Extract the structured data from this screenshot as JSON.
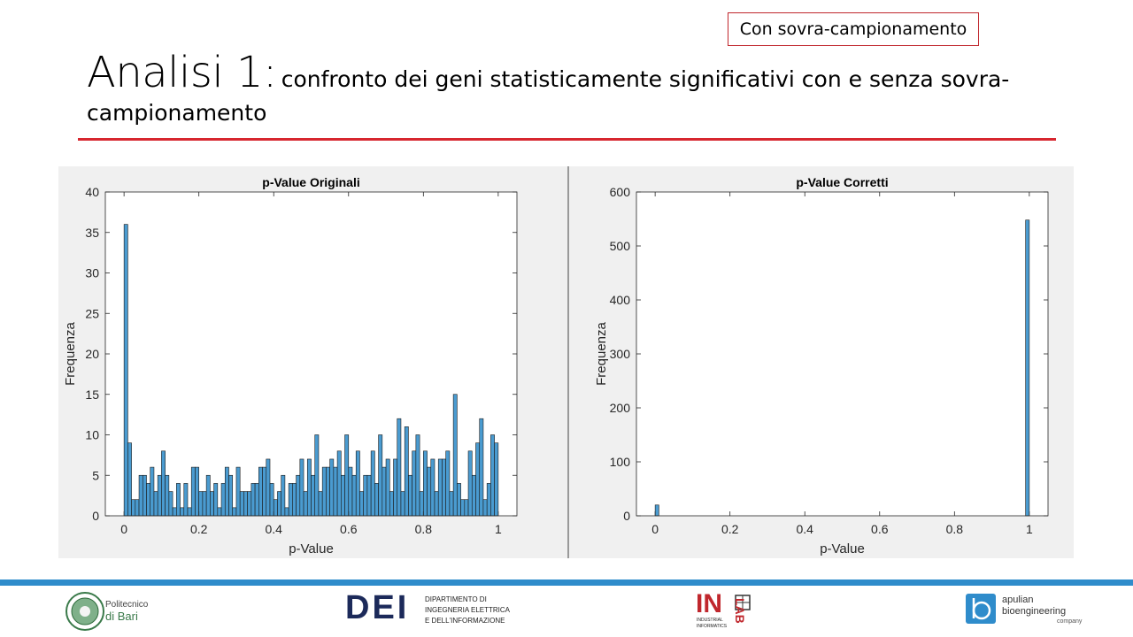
{
  "badge": "Con sovra-campionamento",
  "heading": {
    "main": "Analisi 1:",
    "rest": "confronto dei geni statisticamente significativi con e senza sovra-campionamento"
  },
  "chart_data": [
    {
      "type": "bar",
      "title": "p-Value Originali",
      "xlabel": "p-Value",
      "ylabel": "Frequenza",
      "xlim": [
        -0.05,
        1.05
      ],
      "ylim": [
        0,
        40
      ],
      "xticks": [
        0,
        0.2,
        0.4,
        0.6,
        0.8,
        1
      ],
      "xtick_labels": [
        "0",
        "0.2",
        "0.4",
        "0.6",
        "0.8",
        "1"
      ],
      "yticks": [
        0,
        5,
        10,
        15,
        20,
        25,
        30,
        35,
        40
      ],
      "ytick_labels": [
        "0",
        "5",
        "10",
        "15",
        "20",
        "25",
        "30",
        "35",
        "40"
      ],
      "bin_start": 0,
      "bin_width": 0.01,
      "values": [
        36,
        9,
        2,
        2,
        5,
        5,
        4,
        6,
        3,
        5,
        8,
        5,
        3,
        1,
        4,
        1,
        4,
        1,
        6,
        6,
        3,
        3,
        5,
        3,
        4,
        1,
        4,
        6,
        5,
        1,
        6,
        3,
        3,
        3,
        4,
        4,
        6,
        6,
        7,
        4,
        2,
        3,
        5,
        1,
        4,
        4,
        5,
        7,
        3,
        7,
        5,
        10,
        3,
        6,
        6,
        7,
        6,
        8,
        5,
        10,
        6,
        5,
        8,
        3,
        5,
        5,
        8,
        4,
        10,
        6,
        7,
        3,
        7,
        12,
        3,
        11,
        5,
        8,
        10,
        3,
        8,
        6,
        7,
        3,
        7,
        7,
        8,
        3,
        15,
        4,
        2,
        2,
        8,
        5,
        9,
        12,
        2,
        4,
        10,
        9
      ],
      "bar_color": "#4a9bd0"
    },
    {
      "type": "bar",
      "title": "p-Value Corretti",
      "xlabel": "p-Value",
      "ylabel": "Frequenza",
      "xlim": [
        -0.05,
        1.05
      ],
      "ylim": [
        0,
        600
      ],
      "xticks": [
        0,
        0.2,
        0.4,
        0.6,
        0.8,
        1
      ],
      "xtick_labels": [
        "0",
        "0.2",
        "0.4",
        "0.6",
        "0.8",
        "1"
      ],
      "yticks": [
        0,
        100,
        200,
        300,
        400,
        500,
        600
      ],
      "ytick_labels": [
        "0",
        "100",
        "200",
        "300",
        "400",
        "500",
        "600"
      ],
      "bin_start": 0,
      "bin_width": 0.01,
      "values": [
        20,
        0,
        0,
        0,
        0,
        0,
        0,
        0,
        0,
        0,
        0,
        0,
        0,
        0,
        0,
        0,
        0,
        0,
        0,
        0,
        0,
        0,
        0,
        0,
        0,
        0,
        0,
        0,
        0,
        0,
        0,
        0,
        0,
        0,
        0,
        0,
        0,
        0,
        0,
        0,
        0,
        0,
        0,
        0,
        0,
        0,
        0,
        0,
        0,
        0,
        0,
        0,
        0,
        0,
        0,
        0,
        0,
        0,
        0,
        0,
        0,
        0,
        0,
        0,
        0,
        0,
        0,
        0,
        0,
        0,
        0,
        0,
        0,
        0,
        0,
        0,
        0,
        0,
        0,
        0,
        0,
        0,
        0,
        0,
        0,
        0,
        0,
        0,
        0,
        0,
        0,
        0,
        0,
        0,
        0,
        0,
        0,
        0,
        0,
        548
      ],
      "bar_color": "#4a9bd0"
    }
  ],
  "logos": {
    "poliba": [
      "Politecnico",
      "di Bari"
    ],
    "dei": {
      "mark": "DEI",
      "lines": [
        "DIPARTIMENTO DI",
        "INGEGNERIA ELETTRICA",
        "E DELL'INFORMAZIONE"
      ]
    },
    "inlab": {
      "mark": "IN",
      "lab": "LAB",
      "sub": [
        "INDUSTRIAL",
        "INFORMATICS"
      ]
    },
    "apulian": [
      "apulian",
      "bioengineering",
      "company"
    ]
  }
}
